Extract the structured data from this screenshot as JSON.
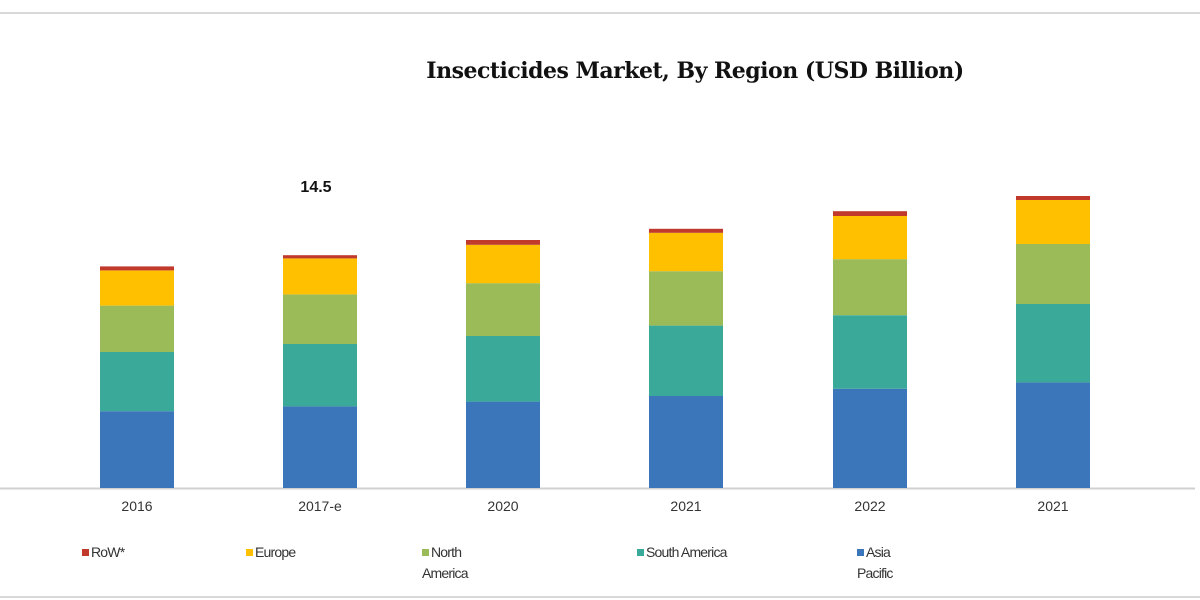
{
  "chart_data": {
    "type": "bar",
    "stacked": true,
    "title": "Insecticides Market, By Region (USD Billion)",
    "xlabel": "",
    "ylabel": "",
    "categories": [
      "2016",
      "2017-e",
      "2020",
      "2021",
      "2022",
      "2021"
    ],
    "series": [
      {
        "name": "Asia Pacific",
        "color": "#3b76ba",
        "values": [
          4.8,
          5.1,
          5.4,
          5.75,
          6.2,
          6.6
        ]
      },
      {
        "name": "South America",
        "color": "#3aa99a",
        "values": [
          3.7,
          3.9,
          4.1,
          4.4,
          4.6,
          4.9
        ]
      },
      {
        "name": "North America",
        "color": "#9bbb59",
        "values": [
          2.9,
          3.1,
          3.3,
          3.4,
          3.5,
          3.75
        ]
      },
      {
        "name": "Europe",
        "color": "#ffc000",
        "values": [
          2.2,
          2.25,
          2.4,
          2.4,
          2.7,
          2.75
        ]
      },
      {
        "name": "RoW*",
        "color": "#c0392b",
        "values": [
          0.25,
          0.2,
          0.3,
          0.25,
          0.3,
          0.25
        ]
      }
    ],
    "annotations": [
      {
        "category": "2017-e",
        "text": "14.5"
      }
    ],
    "legend_items": [
      {
        "label": "RoW*",
        "color": "#c0392b"
      },
      {
        "label": "Europe",
        "color": "#ffc000"
      },
      {
        "label": "North America",
        "color": "#9bbb59"
      },
      {
        "label": "South America",
        "color": "#3aa99a"
      },
      {
        "label": "Asia Pacific",
        "color": "#3b76ba"
      }
    ],
    "legend_position": "bottom",
    "grid": false
  }
}
